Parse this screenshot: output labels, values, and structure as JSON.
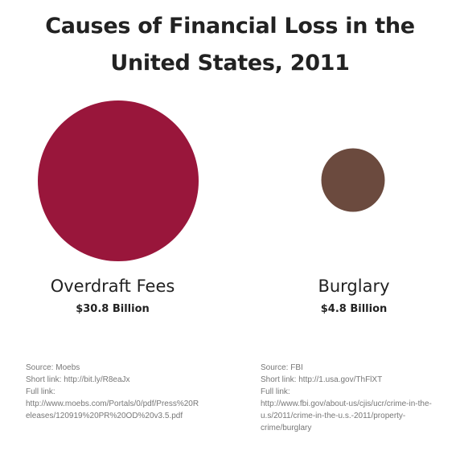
{
  "chart_data": {
    "type": "bubble",
    "title_lines": [
      "Causes of Financial Loss in the",
      "United States, 2011"
    ],
    "categories": [
      "Overdraft Fees",
      "Burglary"
    ],
    "values": [
      30.8,
      4.8
    ],
    "value_labels": [
      "$30.8 Billion",
      "$4.8 Billion"
    ],
    "colors": [
      "#99163b",
      "#6b4a3e"
    ],
    "unit": "Billion USD"
  },
  "sources": [
    {
      "source": "Source: Moebs",
      "short": "Short link: http://bit.ly/R8eaJx",
      "full_label": "Full link:",
      "full": [
        "http://www.moebs.com/Portals/0/pdf/Press%20R",
        "eleases/120919%20PR%20OD%20v3.5.pdf"
      ]
    },
    {
      "source": "Source: FBI",
      "short": "Short link: http://1.usa.gov/ThFlXT",
      "full_label": "Full link:",
      "full": [
        "http://www.fbi.gov/about-us/cjis/ucr/crime-in-the-",
        "u.s/2011/crime-in-the-u.s.-2011/property-",
        "crime/burglary"
      ]
    }
  ]
}
